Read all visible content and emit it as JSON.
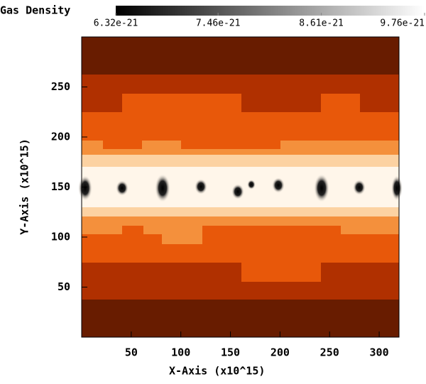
{
  "chart_data": {
    "type": "image",
    "x_label": "X-Axis (x10^15)",
    "y_label": "Y-Axis (x10^15)",
    "xlim": [
      0,
      320
    ],
    "xticks": [
      50,
      100,
      150,
      200,
      250,
      300
    ],
    "ylim": [
      0,
      300
    ],
    "yticks": [
      50,
      100,
      150,
      200,
      250
    ],
    "colorbar": {
      "title": "Gas Density",
      "colors": [
        "#000000",
        "#ffffff"
      ],
      "lim": [
        6.32e-21,
        9.76e-21
      ],
      "ticks": [
        6.32e-21,
        7.46e-21,
        8.61e-21,
        9.76e-21
      ]
    }
  }
}
